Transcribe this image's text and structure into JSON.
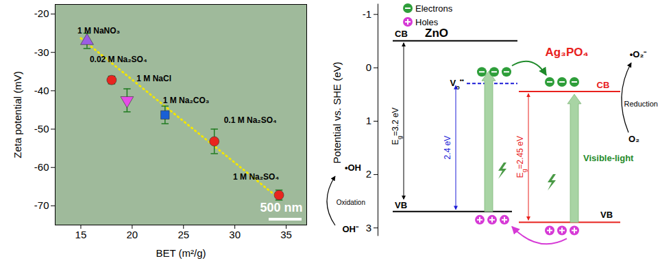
{
  "chart_data": {
    "type": "scatter",
    "x_label": "BET (m²/g)",
    "y_label": "Zeta potential (mV)",
    "xlim": [
      12.5,
      37
    ],
    "ylim": [
      -75,
      -17.5
    ],
    "xticks": [
      15,
      20,
      25,
      30,
      35
    ],
    "yticks": [
      -70,
      -60,
      -50,
      -40,
      -30,
      -20
    ],
    "series": [
      {
        "name": "1 M NaNO₃",
        "color": "#9b5de5",
        "marker": "triangle-up",
        "x": [
          15.6
        ],
        "values": [
          -27
        ],
        "error": [
          2
        ]
      },
      {
        "name": "0.02 M Na₂SO₄",
        "color": "#e8251f",
        "marker": "circle",
        "x": [
          18
        ],
        "values": [
          -37.2
        ],
        "error": [
          1
        ]
      },
      {
        "name": "1 M NaCl",
        "color": "#e64ce6",
        "marker": "triangle-down",
        "x": [
          19.5
        ],
        "values": [
          -42.5
        ],
        "error": [
          3
        ]
      },
      {
        "name": "1 M Na₂CO₃",
        "color": "#1a5fd6",
        "marker": "square",
        "x": [
          23.2
        ],
        "values": [
          -46.3
        ],
        "error": [
          2.3
        ]
      },
      {
        "name": "0.1 M Na₂SO₄",
        "color": "#e8251f",
        "marker": "circle",
        "x": [
          28
        ],
        "values": [
          -53.2
        ],
        "error": [
          3.2
        ]
      },
      {
        "name": "1 M Na₂SO₄",
        "color": "#e8251f",
        "marker": "circle",
        "x": [
          34.3
        ],
        "values": [
          -67.2
        ],
        "error": [
          1.3
        ]
      }
    ],
    "trend_line": {
      "x": [
        15,
        34.5
      ],
      "values": [
        -26.3,
        -68.5
      ],
      "color": "#f2e600",
      "line_style": "dotted"
    },
    "annotations": [
      "500 nm"
    ]
  },
  "diagram": {
    "y_label": "Potential vs. SHE (eV)",
    "ylim": [
      -1.2,
      3.15
    ],
    "yticks": [
      -1,
      0,
      1,
      2,
      3
    ],
    "legend": [
      {
        "text": "Electrons",
        "color": "#2e9e3a"
      },
      {
        "text": "Holes",
        "color": "#d63ad6"
      }
    ],
    "materials": [
      {
        "name": "ZnO",
        "color": "#000000",
        "cb": -0.5,
        "vb": 2.7,
        "cb_label": "CB",
        "vb_label": "VB",
        "band_gap": {
          "main": "E",
          "sub": "g",
          "after": "=3.2 eV"
        }
      },
      {
        "name": "Ag₃PO₄",
        "color": "#e8201c",
        "cb": 0.45,
        "vb": 2.9,
        "cb_label": "CB",
        "vb_label": "VB",
        "band_gap": {
          "main": "E",
          "sub": "g",
          "after": "=2.45 eV"
        }
      }
    ],
    "defect": {
      "label": {
        "main": "V",
        "sub": "o",
        "sup": "••"
      },
      "level": 0.3,
      "transition_label": "2.4 eV",
      "color": "#1a1ad6"
    },
    "light_label": "Visible-light",
    "reduction": {
      "label": "Reduction",
      "product": "•O₂⁻",
      "reactant": "O₂"
    },
    "oxidation": {
      "label": "Oxidation",
      "product": "•OH",
      "reactant": "OH⁻"
    }
  }
}
